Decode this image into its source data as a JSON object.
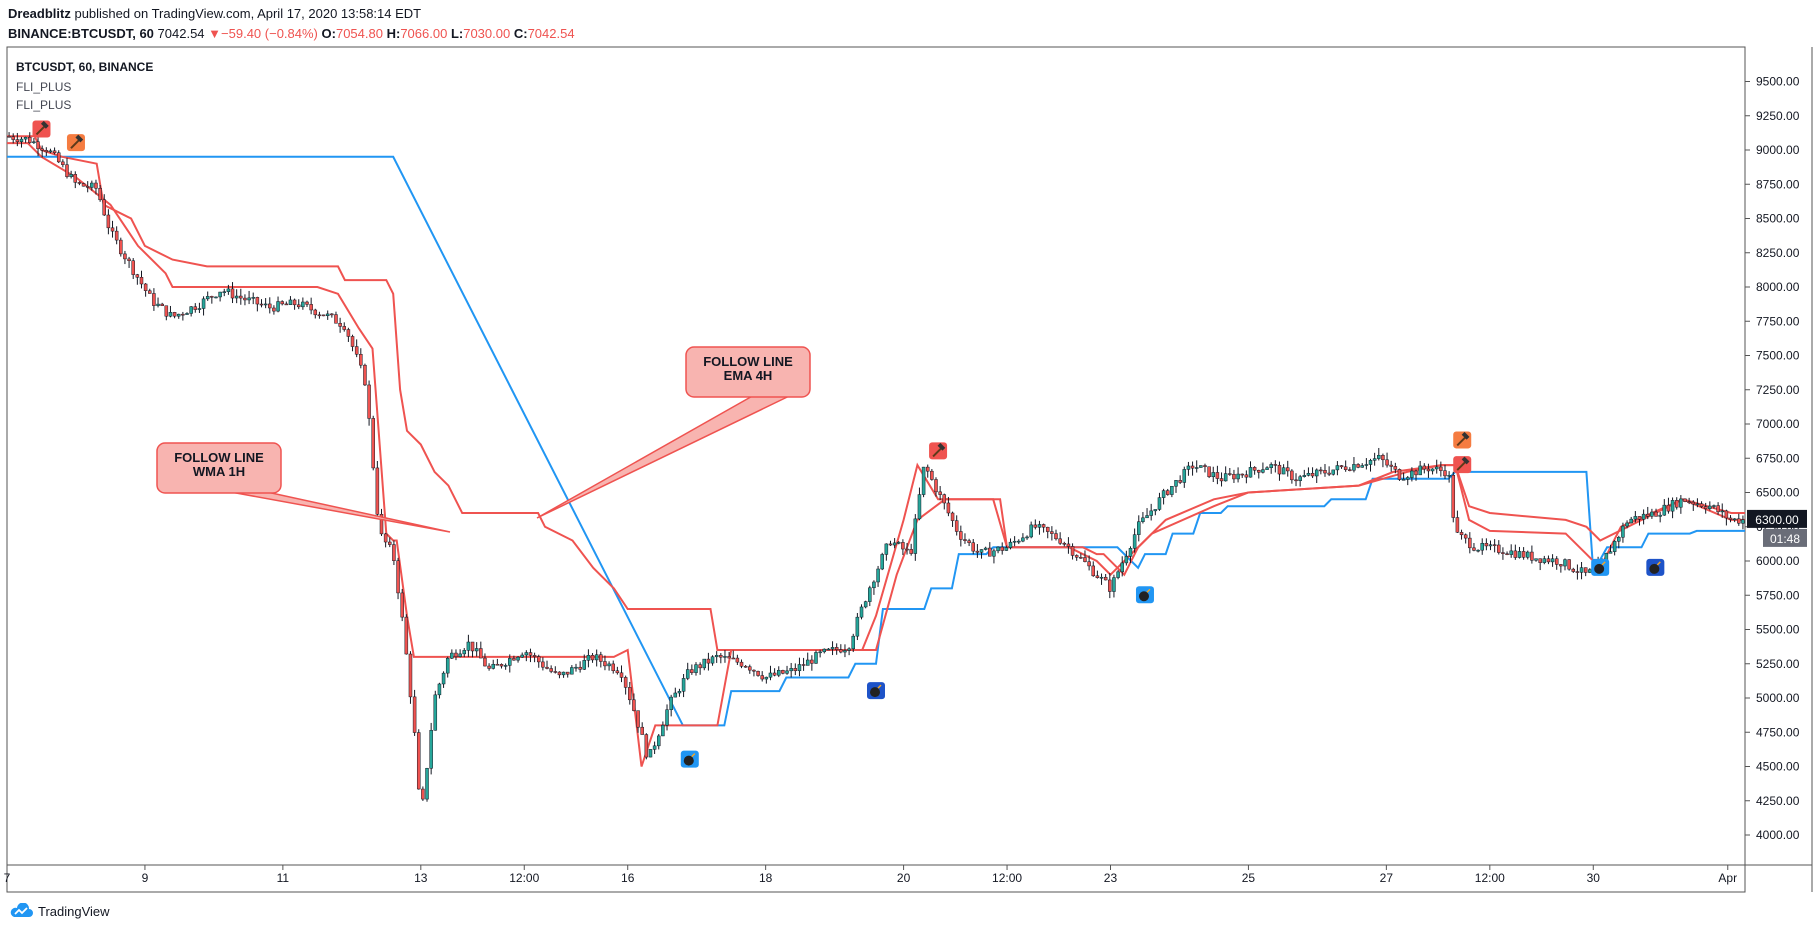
{
  "header": {
    "author": "Dreadblitz",
    "published_text": "published on TradingView.com, April 17, 2020 13:58:14 EDT",
    "symbol_line": "BINANCE:BTCUSDT, 60",
    "last_price": "7042.54",
    "change_arrow": "▼",
    "change": "−59.40 (−0.84%)",
    "o_label": "O:",
    "o_value": "7054.80",
    "h_label": "H:",
    "h_value": "7066.00",
    "l_label": "L:",
    "l_value": "7030.00",
    "c_label": "C:",
    "c_value": "7042.54"
  },
  "legend": {
    "symbol": "BTCUSDT, 60, BINANCE",
    "indicators": [
      "FLI_PLUS",
      "FLI_PLUS"
    ]
  },
  "footer": {
    "brand": "TradingView",
    "logo_icon": "tradingview-cloud-icon"
  },
  "colors": {
    "up": "#26a69a",
    "down": "#ef5350",
    "resistance_line": "#ef5350",
    "support_line": "#2196f3",
    "annotation_fill": "#f8b4b0",
    "annotation_stroke": "#ef5350",
    "price_tag_bg": "#131722",
    "sell_marker": "#ef5350",
    "buy_marker": "#2196f3"
  },
  "annotations": [
    {
      "line1": "FOLLOW LINE",
      "line2": "WMA 1H"
    },
    {
      "line1": "FOLLOW LINE",
      "line2": "EMA 4H"
    }
  ],
  "price_tag": {
    "price": "6300.00",
    "countdown": "01:48"
  },
  "chart_data": {
    "type": "candlestick",
    "title": "",
    "grid": false,
    "ylim": [
      3800,
      9700
    ],
    "y_ticks": [
      "9500.00",
      "9250.00",
      "9000.00",
      "8750.00",
      "8500.00",
      "8250.00",
      "8000.00",
      "7750.00",
      "7500.00",
      "7250.00",
      "7000.00",
      "6750.00",
      "6500.00",
      "6250.00",
      "6000.00",
      "5750.00",
      "5500.00",
      "5250.00",
      "5000.00",
      "4750.00",
      "4500.00",
      "4250.00",
      "4000.00"
    ],
    "x_ticks": [
      "7",
      "9",
      "11",
      "13",
      "12:00",
      "16",
      "18",
      "20",
      "12:00",
      "23",
      "25",
      "27",
      "12:00",
      "30",
      "Apr"
    ],
    "price_path": [
      [
        7.0,
        9100
      ],
      [
        7.3,
        9080
      ],
      [
        7.6,
        9000
      ],
      [
        7.8,
        8880
      ],
      [
        8.0,
        8750
      ],
      [
        8.3,
        8720
      ],
      [
        8.5,
        8400
      ],
      [
        8.8,
        8150
      ],
      [
        9.1,
        7900
      ],
      [
        9.4,
        7780
      ],
      [
        9.8,
        7880
      ],
      [
        10.1,
        7980
      ],
      [
        10.4,
        7920
      ],
      [
        10.8,
        7850
      ],
      [
        11.2,
        7880
      ],
      [
        11.6,
        7800
      ],
      [
        11.9,
        7720
      ],
      [
        12.2,
        7300
      ],
      [
        12.4,
        6200
      ],
      [
        12.6,
        6050
      ],
      [
        12.75,
        5500
      ],
      [
        12.9,
        4800
      ],
      [
        13.0,
        4100
      ],
      [
        13.2,
        5000
      ],
      [
        13.4,
        5300
      ],
      [
        13.7,
        5400
      ],
      [
        14.0,
        5200
      ],
      [
        14.5,
        5350
      ],
      [
        15.0,
        5150
      ],
      [
        15.5,
        5300
      ],
      [
        15.9,
        5200
      ],
      [
        16.1,
        4900
      ],
      [
        16.3,
        4550
      ],
      [
        16.6,
        4950
      ],
      [
        16.9,
        5200
      ],
      [
        17.3,
        5300
      ],
      [
        17.7,
        5250
      ],
      [
        18.0,
        5150
      ],
      [
        18.4,
        5200
      ],
      [
        18.8,
        5320
      ],
      [
        19.2,
        5380
      ],
      [
        19.5,
        5800
      ],
      [
        19.8,
        6150
      ],
      [
        20.1,
        6050
      ],
      [
        20.3,
        6700
      ],
      [
        20.5,
        6500
      ],
      [
        20.8,
        6200
      ],
      [
        21.1,
        6050
      ],
      [
        21.5,
        6100
      ],
      [
        21.9,
        6250
      ],
      [
        22.3,
        6150
      ],
      [
        22.7,
        5950
      ],
      [
        23.0,
        5800
      ],
      [
        23.4,
        6250
      ],
      [
        23.8,
        6500
      ],
      [
        24.2,
        6700
      ],
      [
        24.6,
        6600
      ],
      [
        25.0,
        6650
      ],
      [
        25.3,
        6700
      ],
      [
        25.7,
        6600
      ],
      [
        26.1,
        6650
      ],
      [
        26.5,
        6700
      ],
      [
        26.9,
        6750
      ],
      [
        27.2,
        6620
      ],
      [
        27.6,
        6680
      ],
      [
        27.9,
        6650
      ],
      [
        28.0,
        6200
      ],
      [
        28.3,
        6100
      ],
      [
        28.7,
        6080
      ],
      [
        29.1,
        6030
      ],
      [
        29.5,
        6000
      ],
      [
        29.9,
        5900
      ],
      [
        30.1,
        5960
      ],
      [
        30.5,
        6300
      ],
      [
        30.9,
        6350
      ],
      [
        31.3,
        6450
      ],
      [
        31.7,
        6400
      ],
      [
        32.0,
        6300
      ],
      [
        32.2,
        6300
      ]
    ],
    "support_line": [
      [
        7.0,
        8950
      ],
      [
        8.0,
        8950
      ],
      [
        8.9,
        8950
      ],
      [
        12.6,
        8950
      ],
      [
        16.8,
        4800
      ],
      [
        17.4,
        4800
      ],
      [
        17.5,
        5050
      ],
      [
        18.2,
        5050
      ],
      [
        18.3,
        5150
      ],
      [
        19.2,
        5150
      ],
      [
        19.3,
        5250
      ],
      [
        19.6,
        5250
      ],
      [
        19.7,
        5650
      ],
      [
        20.3,
        5650
      ],
      [
        20.4,
        5800
      ],
      [
        20.7,
        5800
      ],
      [
        20.8,
        6050
      ],
      [
        21.2,
        6050
      ],
      [
        21.3,
        6100
      ],
      [
        23.1,
        6100
      ],
      [
        23.4,
        5950
      ],
      [
        23.5,
        6050
      ],
      [
        23.8,
        6050
      ],
      [
        23.9,
        6200
      ],
      [
        24.2,
        6200
      ],
      [
        24.3,
        6350
      ],
      [
        24.6,
        6350
      ],
      [
        24.7,
        6400
      ],
      [
        26.1,
        6400
      ],
      [
        26.2,
        6450
      ],
      [
        26.7,
        6450
      ],
      [
        26.8,
        6600
      ],
      [
        27.9,
        6600
      ],
      [
        28.0,
        6650
      ],
      [
        28.3,
        6650
      ],
      [
        28.5,
        6650
      ],
      [
        29.9,
        6650
      ],
      [
        30.0,
        5920
      ],
      [
        30.2,
        6100
      ],
      [
        30.7,
        6100
      ],
      [
        30.8,
        6200
      ],
      [
        31.4,
        6200
      ],
      [
        31.5,
        6220
      ],
      [
        32.2,
        6220
      ]
    ],
    "wma_1h_line": [
      [
        7.0,
        9050
      ],
      [
        7.3,
        9050
      ],
      [
        7.5,
        8950
      ],
      [
        8.0,
        8800
      ],
      [
        8.5,
        8600
      ],
      [
        8.9,
        8300
      ],
      [
        9.3,
        8100
      ],
      [
        9.4,
        8000
      ],
      [
        11.5,
        8000
      ],
      [
        11.8,
        7950
      ],
      [
        12.1,
        7700
      ],
      [
        12.3,
        7550
      ],
      [
        12.5,
        6200
      ],
      [
        12.6,
        6150
      ],
      [
        12.65,
        6150
      ],
      [
        12.8,
        5600
      ],
      [
        12.9,
        5300
      ],
      [
        15.8,
        5300
      ],
      [
        16.0,
        5350
      ],
      [
        16.2,
        4500
      ],
      [
        16.4,
        4800
      ],
      [
        17.3,
        4800
      ],
      [
        17.5,
        5350
      ],
      [
        19.4,
        5350
      ],
      [
        19.6,
        5600
      ],
      [
        20.0,
        6300
      ],
      [
        20.2,
        6700
      ],
      [
        20.5,
        6450
      ],
      [
        21.4,
        6450
      ],
      [
        21.5,
        6100
      ],
      [
        22.4,
        6100
      ],
      [
        22.8,
        6000
      ],
      [
        23.0,
        5900
      ],
      [
        23.3,
        6050
      ],
      [
        23.6,
        6200
      ],
      [
        24.5,
        6400
      ],
      [
        25.0,
        6500
      ],
      [
        26.6,
        6550
      ],
      [
        27.1,
        6650
      ],
      [
        27.8,
        6700
      ],
      [
        28.0,
        6700
      ],
      [
        28.2,
        6300
      ],
      [
        28.5,
        6220
      ],
      [
        29.6,
        6200
      ],
      [
        29.9,
        6050
      ],
      [
        30.1,
        5950
      ],
      [
        30.4,
        6250
      ],
      [
        31.3,
        6450
      ],
      [
        32.0,
        6300
      ],
      [
        32.2,
        6300
      ]
    ],
    "ema_4h_line": [
      [
        7.0,
        9100
      ],
      [
        7.4,
        9100
      ],
      [
        7.5,
        9000
      ],
      [
        7.8,
        8950
      ],
      [
        8.3,
        8900
      ],
      [
        8.4,
        8600
      ],
      [
        8.8,
        8500
      ],
      [
        9.0,
        8300
      ],
      [
        9.4,
        8200
      ],
      [
        9.9,
        8150
      ],
      [
        11.8,
        8150
      ],
      [
        11.9,
        8050
      ],
      [
        12.5,
        8050
      ],
      [
        12.6,
        7950
      ],
      [
        12.7,
        7250
      ],
      [
        12.8,
        6950
      ],
      [
        13.0,
        6850
      ],
      [
        13.2,
        6650
      ],
      [
        13.4,
        6550
      ],
      [
        13.6,
        6350
      ],
      [
        14.7,
        6350
      ],
      [
        14.8,
        6250
      ],
      [
        15.2,
        6150
      ],
      [
        15.5,
        5950
      ],
      [
        15.8,
        5800
      ],
      [
        16.0,
        5650
      ],
      [
        16.5,
        5650
      ],
      [
        17.2,
        5650
      ],
      [
        17.3,
        5350
      ],
      [
        19.6,
        5350
      ],
      [
        19.9,
        5900
      ],
      [
        20.2,
        6300
      ],
      [
        20.6,
        6450
      ],
      [
        21.3,
        6450
      ],
      [
        21.5,
        6100
      ],
      [
        22.6,
        6100
      ],
      [
        22.8,
        6050
      ],
      [
        22.9,
        6050
      ],
      [
        23.2,
        5900
      ],
      [
        23.4,
        6100
      ],
      [
        23.8,
        6300
      ],
      [
        24.5,
        6450
      ],
      [
        25.0,
        6500
      ],
      [
        26.6,
        6550
      ],
      [
        27.3,
        6650
      ],
      [
        27.8,
        6700
      ],
      [
        28.0,
        6700
      ],
      [
        28.2,
        6400
      ],
      [
        28.5,
        6350
      ],
      [
        29.6,
        6300
      ],
      [
        29.9,
        6250
      ],
      [
        30.1,
        6150
      ],
      [
        30.5,
        6250
      ],
      [
        31.3,
        6450
      ],
      [
        32.0,
        6350
      ],
      [
        32.2,
        6350
      ]
    ],
    "sell_signals": [
      [
        7.5,
        9150
      ],
      [
        8.0,
        9050
      ],
      [
        20.5,
        6800
      ],
      [
        28.1,
        6880
      ],
      [
        28.1,
        6700
      ]
    ],
    "buy_signals": [
      [
        16.9,
        4550
      ],
      [
        19.6,
        5050
      ],
      [
        23.5,
        5750
      ],
      [
        30.1,
        5950
      ],
      [
        30.9,
        5950
      ]
    ]
  }
}
